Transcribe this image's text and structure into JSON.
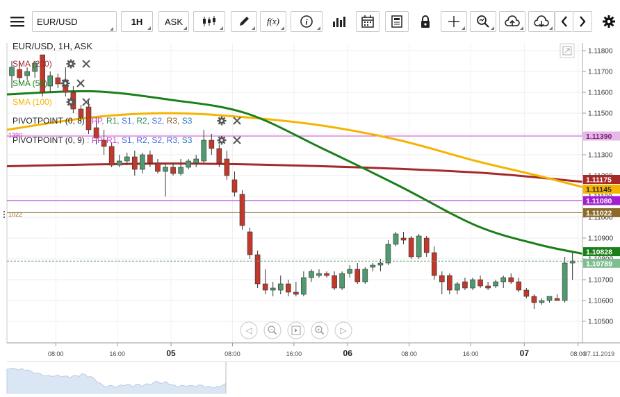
{
  "toolbar": {
    "menu_icon": "hamburger-menu-icon",
    "symbol_value": "EUR/USD",
    "timeframe_label": "1H",
    "price_type_label": "ASK",
    "chart_type_icon": "candlestick-icon",
    "draw_icon": "pencil-icon",
    "indicator_icon_label": "f(x)",
    "info_icon_label": "i",
    "volume_icon": "bar-chart-icon",
    "calendar_icon": "calendar-icon",
    "news_icon": "news-icon",
    "lock_icon": "lock-icon",
    "crosshair_icon": "crosshair-icon",
    "zoom_icon": "zoom-icon",
    "upload_icon": "cloud-upload-icon",
    "download_icon": "cloud-download-icon",
    "prev_icon": "chevron-left-icon",
    "next_icon": "chevron-right-icon",
    "settings_icon": "gear-icon"
  },
  "chart_header": {
    "title": "EUR/USD, 1H, ASK",
    "expand_icon": "expand-icon"
  },
  "indicators": [
    {
      "label": "SMA (200)",
      "color": "#a52a2a"
    },
    {
      "label": "SMA (55)",
      "color": "#1a7f1a"
    },
    {
      "label": "SMA (100)",
      "color": "#f5b400"
    }
  ],
  "pivots": [
    {
      "prefix": "PIVOTPOINT (0, 8)",
      "sep": ":",
      "levels": [
        {
          "t": "PP",
          "c": "#cc44cc"
        },
        {
          "t": "R1",
          "c": "#2e8b57"
        },
        {
          "t": "S1",
          "c": "#4169e1"
        },
        {
          "t": "R2",
          "c": "#2e8b57"
        },
        {
          "t": "S2",
          "c": "#4169e1"
        },
        {
          "t": "R3",
          "c": "#8b5a2b"
        },
        {
          "t": "S3",
          "c": "#2a7ab0"
        }
      ]
    },
    {
      "prefix": "PIVOTPOINT (0, 9)",
      "sep": ":",
      "levels": [
        {
          "t": "PP",
          "c": "#cc44cc"
        },
        {
          "t": "R1",
          "c": "#cc44cc"
        },
        {
          "t": "S1",
          "c": "#4169e1"
        },
        {
          "t": "R2",
          "c": "#4169e1"
        },
        {
          "t": "S2",
          "c": "#4169e1"
        },
        {
          "t": "R3",
          "c": "#4169e1"
        },
        {
          "t": "S3",
          "c": "#2a7ab0"
        }
      ]
    }
  ],
  "overlay_icons": {
    "settings": "gear-icon",
    "remove": "close-icon"
  },
  "left_stubs": {
    "upper": "1390",
    "lower": "1022"
  },
  "price_axis": {
    "ticks": [
      "1.11800",
      "1.11700",
      "1.11600",
      "1.11500",
      "1.11400",
      "1.11300",
      "1.11200",
      "1.11100",
      "1.11000",
      "1.10900",
      "1.10800",
      "1.10700",
      "1.10600",
      "1.10500"
    ],
    "badges": [
      {
        "value": "1.11390",
        "bg": "#e6b8e6",
        "fg": "#7a1f7a"
      },
      {
        "value": "1.11175",
        "bg": "#a52a2a",
        "fg": "#ffffff"
      },
      {
        "value": "1.11145",
        "bg": "#f5b400",
        "fg": "#222222"
      },
      {
        "value": "1.11080",
        "bg": "#a020d0",
        "fg": "#ffffff"
      },
      {
        "value": "1.11022",
        "bg": "#8b6a2b",
        "fg": "#ffffff"
      },
      {
        "value": "1.10828",
        "bg": "#1a7f1a",
        "fg": "#ffffff"
      },
      {
        "value": "1.10789",
        "bg": "#7fbf8f",
        "fg": "#ffffff"
      }
    ]
  },
  "time_axis": {
    "ticks": [
      {
        "label": "08:00",
        "bold": false
      },
      {
        "label": "16:00",
        "bold": false
      },
      {
        "label": "05",
        "bold": true
      },
      {
        "label": "08:00",
        "bold": false
      },
      {
        "label": "16:00",
        "bold": false
      },
      {
        "label": "06",
        "bold": true
      },
      {
        "label": "08:00",
        "bold": false
      },
      {
        "label": "16:00",
        "bold": false
      },
      {
        "label": "07",
        "bold": true
      },
      {
        "label": "08:00",
        "bold": false
      }
    ],
    "last_date": "07.11.2019"
  },
  "nav_controls": [
    {
      "name": "scroll-left-icon",
      "glyph": "◁"
    },
    {
      "name": "zoom-out-icon",
      "glyph": "−"
    },
    {
      "name": "reset-view-icon",
      "glyph": "⏸"
    },
    {
      "name": "zoom-in-icon",
      "glyph": "+"
    },
    {
      "name": "scroll-right-icon",
      "glyph": "▷"
    }
  ],
  "colors": {
    "bull": "#4f9a6e",
    "bear": "#c0392b",
    "sma200": "#a52a2a",
    "sma55": "#1a7f1a",
    "sma100": "#f5b400",
    "pivot_magenta": "#cc44cc",
    "pivot_purple": "#a020d0",
    "pivot_brown": "#8b6a2b"
  },
  "chart_data": {
    "type": "candlestick",
    "symbol": "EUR/USD",
    "interval": "1H",
    "ylim": [
      1.1045,
      1.1185
    ],
    "candles": [
      {
        "o": 1.1168,
        "h": 1.1175,
        "l": 1.1162,
        "c": 1.1172
      },
      {
        "o": 1.1171,
        "h": 1.1174,
        "l": 1.1165,
        "c": 1.1167
      },
      {
        "o": 1.1168,
        "h": 1.1172,
        "l": 1.1166,
        "c": 1.117
      },
      {
        "o": 1.117,
        "h": 1.1175,
        "l": 1.1167,
        "c": 1.1174
      },
      {
        "o": 1.1178,
        "h": 1.1178,
        "l": 1.1158,
        "c": 1.116
      },
      {
        "o": 1.1163,
        "h": 1.117,
        "l": 1.116,
        "c": 1.1168
      },
      {
        "o": 1.1167,
        "h": 1.1169,
        "l": 1.1162,
        "c": 1.1164
      },
      {
        "o": 1.1166,
        "h": 1.1172,
        "l": 1.1158,
        "c": 1.116
      },
      {
        "o": 1.116,
        "h": 1.1163,
        "l": 1.115,
        "c": 1.1152
      },
      {
        "o": 1.1152,
        "h": 1.1154,
        "l": 1.1146,
        "c": 1.1148
      },
      {
        "o": 1.1153,
        "h": 1.1156,
        "l": 1.114,
        "c": 1.1142
      },
      {
        "o": 1.1143,
        "h": 1.1148,
        "l": 1.1135,
        "c": 1.1138
      },
      {
        "o": 1.1137,
        "h": 1.1142,
        "l": 1.113,
        "c": 1.1134
      },
      {
        "o": 1.1134,
        "h": 1.1136,
        "l": 1.1124,
        "c": 1.1125
      },
      {
        "o": 1.1125,
        "h": 1.113,
        "l": 1.1124,
        "c": 1.1127
      },
      {
        "o": 1.1127,
        "h": 1.1131,
        "l": 1.1125,
        "c": 1.1129
      },
      {
        "o": 1.1129,
        "h": 1.1132,
        "l": 1.112,
        "c": 1.1123
      },
      {
        "o": 1.1123,
        "h": 1.1131,
        "l": 1.1121,
        "c": 1.113
      },
      {
        "o": 1.113,
        "h": 1.1132,
        "l": 1.1124,
        "c": 1.1126
      },
      {
        "o": 1.1126,
        "h": 1.1128,
        "l": 1.1121,
        "c": 1.1122
      },
      {
        "o": 1.1122,
        "h": 1.1126,
        "l": 1.111,
        "c": 1.1124
      },
      {
        "o": 1.1124,
        "h": 1.1126,
        "l": 1.112,
        "c": 1.1121
      },
      {
        "o": 1.1121,
        "h": 1.1128,
        "l": 1.112,
        "c": 1.1124
      },
      {
        "o": 1.1124,
        "h": 1.1128,
        "l": 1.1123,
        "c": 1.1127
      },
      {
        "o": 1.1126,
        "h": 1.113,
        "l": 1.1124,
        "c": 1.1128
      },
      {
        "o": 1.1127,
        "h": 1.1142,
        "l": 1.1126,
        "c": 1.1137
      },
      {
        "o": 1.1137,
        "h": 1.114,
        "l": 1.113,
        "c": 1.1133
      },
      {
        "o": 1.1133,
        "h": 1.1135,
        "l": 1.1124,
        "c": 1.1126
      },
      {
        "o": 1.1128,
        "h": 1.1132,
        "l": 1.1118,
        "c": 1.112
      },
      {
        "o": 1.1118,
        "h": 1.1122,
        "l": 1.111,
        "c": 1.1112
      },
      {
        "o": 1.1111,
        "h": 1.1113,
        "l": 1.1094,
        "c": 1.1096
      },
      {
        "o": 1.1093,
        "h": 1.1095,
        "l": 1.108,
        "c": 1.1082
      },
      {
        "o": 1.1082,
        "h": 1.1084,
        "l": 1.1066,
        "c": 1.1068
      },
      {
        "o": 1.1068,
        "h": 1.1075,
        "l": 1.1063,
        "c": 1.1065
      },
      {
        "o": 1.1065,
        "h": 1.1069,
        "l": 1.1062,
        "c": 1.1066
      },
      {
        "o": 1.1065,
        "h": 1.1072,
        "l": 1.1063,
        "c": 1.1068
      },
      {
        "o": 1.1068,
        "h": 1.107,
        "l": 1.1062,
        "c": 1.1064
      },
      {
        "o": 1.1064,
        "h": 1.1069,
        "l": 1.1062,
        "c": 1.1063
      },
      {
        "o": 1.1063,
        "h": 1.1074,
        "l": 1.1062,
        "c": 1.1071
      },
      {
        "o": 1.1071,
        "h": 1.1075,
        "l": 1.1069,
        "c": 1.1074
      },
      {
        "o": 1.1072,
        "h": 1.1075,
        "l": 1.1071,
        "c": 1.1073
      },
      {
        "o": 1.1073,
        "h": 1.1074,
        "l": 1.1071,
        "c": 1.1072
      },
      {
        "o": 1.1072,
        "h": 1.1074,
        "l": 1.1065,
        "c": 1.1066
      },
      {
        "o": 1.1066,
        "h": 1.1074,
        "l": 1.1065,
        "c": 1.1073
      },
      {
        "o": 1.1073,
        "h": 1.1077,
        "l": 1.1071,
        "c": 1.1075
      },
      {
        "o": 1.1075,
        "h": 1.1078,
        "l": 1.1068,
        "c": 1.1069
      },
      {
        "o": 1.1069,
        "h": 1.1076,
        "l": 1.1068,
        "c": 1.1075
      },
      {
        "o": 1.1076,
        "h": 1.1078,
        "l": 1.1074,
        "c": 1.1077
      },
      {
        "o": 1.1077,
        "h": 1.108,
        "l": 1.1074,
        "c": 1.1078
      },
      {
        "o": 1.1078,
        "h": 1.1089,
        "l": 1.1077,
        "c": 1.1087
      },
      {
        "o": 1.1087,
        "h": 1.1093,
        "l": 1.1086,
        "c": 1.1092
      },
      {
        "o": 1.109,
        "h": 1.1093,
        "l": 1.1087,
        "c": 1.1089
      },
      {
        "o": 1.109,
        "h": 1.1091,
        "l": 1.108,
        "c": 1.1081
      },
      {
        "o": 1.1081,
        "h": 1.1092,
        "l": 1.108,
        "c": 1.1091
      },
      {
        "o": 1.109,
        "h": 1.1091,
        "l": 1.1081,
        "c": 1.1083
      },
      {
        "o": 1.1083,
        "h": 1.1086,
        "l": 1.107,
        "c": 1.1072
      },
      {
        "o": 1.1072,
        "h": 1.1074,
        "l": 1.1063,
        "c": 1.1069
      },
      {
        "o": 1.1072,
        "h": 1.1073,
        "l": 1.1063,
        "c": 1.1065
      },
      {
        "o": 1.1065,
        "h": 1.1069,
        "l": 1.1063,
        "c": 1.1068
      },
      {
        "o": 1.1069,
        "h": 1.1071,
        "l": 1.1065,
        "c": 1.1066
      },
      {
        "o": 1.1066,
        "h": 1.1071,
        "l": 1.1065,
        "c": 1.107
      },
      {
        "o": 1.107,
        "h": 1.1072,
        "l": 1.1066,
        "c": 1.1067
      },
      {
        "o": 1.1067,
        "h": 1.1069,
        "l": 1.1065,
        "c": 1.1066
      },
      {
        "o": 1.1067,
        "h": 1.107,
        "l": 1.1066,
        "c": 1.1069
      },
      {
        "o": 1.1069,
        "h": 1.1072,
        "l": 1.1066,
        "c": 1.1071
      },
      {
        "o": 1.1071,
        "h": 1.1073,
        "l": 1.1068,
        "c": 1.1069
      },
      {
        "o": 1.1069,
        "h": 1.1071,
        "l": 1.1064,
        "c": 1.1065
      },
      {
        "o": 1.1065,
        "h": 1.1066,
        "l": 1.1061,
        "c": 1.1062
      },
      {
        "o": 1.1062,
        "h": 1.1063,
        "l": 1.1056,
        "c": 1.1059
      },
      {
        "o": 1.1059,
        "h": 1.1061,
        "l": 1.1058,
        "c": 1.106
      },
      {
        "o": 1.106,
        "h": 1.1062,
        "l": 1.1059,
        "c": 1.1062
      },
      {
        "o": 1.1061,
        "h": 1.1063,
        "l": 1.106,
        "c": 1.106
      },
      {
        "o": 1.106,
        "h": 1.1081,
        "l": 1.1059,
        "c": 1.1078
      },
      {
        "o": 1.1078,
        "h": 1.1083,
        "l": 1.107,
        "c": 1.1079
      }
    ],
    "sma200": [
      {
        "i": 0,
        "v": 1.11245
      },
      {
        "i": 20,
        "v": 1.11258
      },
      {
        "i": 40,
        "v": 1.11245
      },
      {
        "i": 60,
        "v": 1.11215
      },
      {
        "i": 73,
        "v": 1.1117
      }
    ],
    "sma55": [
      {
        "i": 0,
        "v": 1.1159
      },
      {
        "i": 10,
        "v": 1.11605
      },
      {
        "i": 20,
        "v": 1.11565
      },
      {
        "i": 30,
        "v": 1.115
      },
      {
        "i": 40,
        "v": 1.1133
      },
      {
        "i": 50,
        "v": 1.1115
      },
      {
        "i": 60,
        "v": 1.1096
      },
      {
        "i": 68,
        "v": 1.1087
      },
      {
        "i": 73,
        "v": 1.10825
      }
    ],
    "sma100": [
      {
        "i": 0,
        "v": 1.1142
      },
      {
        "i": 10,
        "v": 1.1148
      },
      {
        "i": 20,
        "v": 1.115
      },
      {
        "i": 30,
        "v": 1.1148
      },
      {
        "i": 40,
        "v": 1.1144
      },
      {
        "i": 50,
        "v": 1.1137
      },
      {
        "i": 60,
        "v": 1.1127
      },
      {
        "i": 68,
        "v": 1.112
      },
      {
        "i": 73,
        "v": 1.11145
      }
    ],
    "hlines": [
      {
        "v": 1.1139,
        "color": "#cc44cc"
      },
      {
        "v": 1.1108,
        "color": "#a020d0"
      },
      {
        "v": 1.11022,
        "color": "#8b6a2b"
      }
    ],
    "last_price": 1.10789
  }
}
